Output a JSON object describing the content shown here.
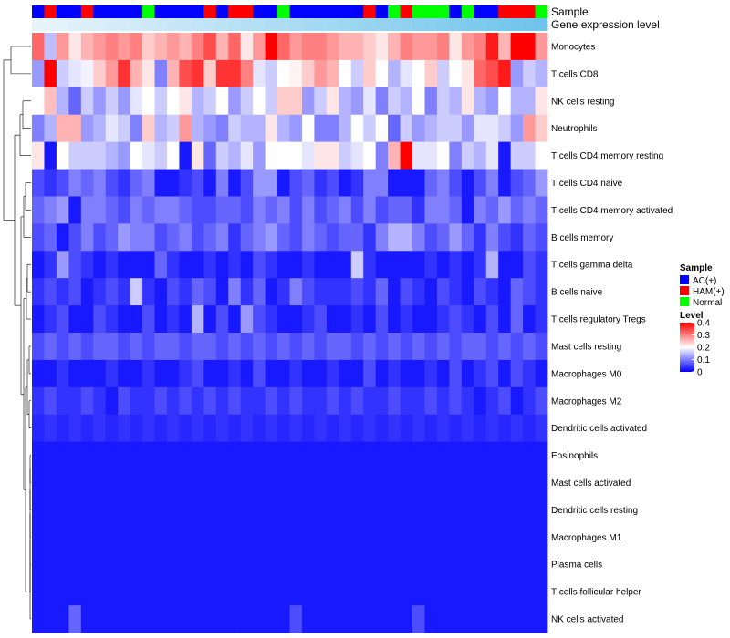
{
  "chart_data": {
    "type": "heatmap",
    "title": "",
    "annotation_tracks": [
      {
        "name": "Sample",
        "type": "categorical"
      },
      {
        "name": "Gene expression level",
        "type": "gradient"
      }
    ],
    "sample_groups": [
      "AC(+)",
      "HAM(+)",
      "AC(+)",
      "AC(+)",
      "HAM(+)",
      "AC(+)",
      "AC(+)",
      "AC(+)",
      "AC(+)",
      "Normal",
      "AC(+)",
      "AC(+)",
      "AC(+)",
      "AC(+)",
      "HAM(+)",
      "AC(+)",
      "HAM(+)",
      "HAM(+)",
      "AC(+)",
      "AC(+)",
      "Normal",
      "AC(+)",
      "AC(+)",
      "AC(+)",
      "AC(+)",
      "AC(+)",
      "AC(+)",
      "HAM(+)",
      "AC(+)",
      "Normal",
      "HAM(+)",
      "Normal",
      "Normal",
      "Normal",
      "AC(+)",
      "Normal",
      "AC(+)",
      "AC(+)",
      "HAM(+)",
      "HAM(+)",
      "HAM(+)",
      "Normal"
    ],
    "rows": [
      "Monocytes",
      "T cells CD8",
      "NK cells resting",
      "Neutrophils",
      "T cells CD4 memory resting",
      "T cells CD4 naive",
      "T cells CD4 memory activated",
      "B cells memory",
      "T cells gamma delta",
      "B cells naive",
      "T cells regulatory  Tregs",
      "Mast cells resting",
      "Macrophages M0",
      "Macrophages M2",
      "Dendritic cells activated",
      "Eosinophils",
      "Mast cells activated",
      "Dendritic cells resting",
      "Macrophages M1",
      "Plasma cells",
      "T cells follicular helper",
      "NK cells activated"
    ],
    "values": [
      [
        0.32,
        0.15,
        0.28,
        0.22,
        0.26,
        0.28,
        0.3,
        0.28,
        0.3,
        0.24,
        0.26,
        0.28,
        0.26,
        0.3,
        0.34,
        0.26,
        0.32,
        0.22,
        0.28,
        0.4,
        0.32,
        0.28,
        0.3,
        0.3,
        0.28,
        0.26,
        0.26,
        0.24,
        0.22,
        0.26,
        0.3,
        0.28,
        0.28,
        0.3,
        0.22,
        0.28,
        0.3,
        0.38,
        0.26,
        0.4,
        0.4,
        0.28
      ],
      [
        0.12,
        0.4,
        0.16,
        0.18,
        0.19,
        0.24,
        0.28,
        0.36,
        0.26,
        0.22,
        0.1,
        0.26,
        0.34,
        0.36,
        0.24,
        0.36,
        0.36,
        0.3,
        0.18,
        0.16,
        0.2,
        0.21,
        0.24,
        0.28,
        0.26,
        0.2,
        0.16,
        0.24,
        0.2,
        0.14,
        0.18,
        0.2,
        0.24,
        0.16,
        0.2,
        0.22,
        0.32,
        0.34,
        0.38,
        0.12,
        0.16,
        0.14
      ],
      [
        0.2,
        0.25,
        0.14,
        0.08,
        0.16,
        0.12,
        0.16,
        0.12,
        0.18,
        0.2,
        0.16,
        0.2,
        0.22,
        0.14,
        0.16,
        0.2,
        0.12,
        0.16,
        0.2,
        0.16,
        0.24,
        0.24,
        0.12,
        0.16,
        0.22,
        0.14,
        0.12,
        0.18,
        0.1,
        0.16,
        0.14,
        0.2,
        0.1,
        0.16,
        0.14,
        0.22,
        0.14,
        0.12,
        0.2,
        0.14,
        0.14,
        0.22
      ],
      [
        0.1,
        0.14,
        0.26,
        0.26,
        0.12,
        0.14,
        0.18,
        0.16,
        0.1,
        0.24,
        0.14,
        0.16,
        0.28,
        0.14,
        0.12,
        0.1,
        0.16,
        0.14,
        0.14,
        0.22,
        0.14,
        0.12,
        0.2,
        0.1,
        0.1,
        0.14,
        0.2,
        0.16,
        0.2,
        0.08,
        0.16,
        0.12,
        0.14,
        0.16,
        0.16,
        0.12,
        0.18,
        0.18,
        0.16,
        0.12,
        0.28,
        0.24
      ],
      [
        0.22,
        0.02,
        0.2,
        0.16,
        0.16,
        0.16,
        0.14,
        0.12,
        0.2,
        0.18,
        0.16,
        0.2,
        0.02,
        0.22,
        0.08,
        0.16,
        0.14,
        0.18,
        0.12,
        0.2,
        0.2,
        0.2,
        0.18,
        0.22,
        0.22,
        0.16,
        0.18,
        0.2,
        0.1,
        0.26,
        0.4,
        0.18,
        0.18,
        0.2,
        0.1,
        0.16,
        0.14,
        0.18,
        0.02,
        0.16,
        0.16,
        0.2
      ],
      [
        0.06,
        0.04,
        0.06,
        0.1,
        0.08,
        0.1,
        0.06,
        0.04,
        0.08,
        0.1,
        0.02,
        0.02,
        0.04,
        0.06,
        0.02,
        0.1,
        0.02,
        0.06,
        0.12,
        0.12,
        0.02,
        0.06,
        0.08,
        0.04,
        0.06,
        0.02,
        0.04,
        0.1,
        0.1,
        0.02,
        0.02,
        0.02,
        0.08,
        0.1,
        0.06,
        0.02,
        0.06,
        0.1,
        0.02,
        0.06,
        0.08,
        0.12
      ],
      [
        0.08,
        0.1,
        0.12,
        0.02,
        0.1,
        0.1,
        0.08,
        0.06,
        0.1,
        0.08,
        0.1,
        0.1,
        0.08,
        0.06,
        0.06,
        0.08,
        0.08,
        0.06,
        0.1,
        0.08,
        0.1,
        0.06,
        0.1,
        0.06,
        0.08,
        0.1,
        0.06,
        0.1,
        0.06,
        0.08,
        0.08,
        0.04,
        0.1,
        0.1,
        0.08,
        0.02,
        0.1,
        0.08,
        0.12,
        0.08,
        0.1,
        0.08
      ],
      [
        0.06,
        0.08,
        0.02,
        0.06,
        0.1,
        0.06,
        0.08,
        0.12,
        0.1,
        0.1,
        0.06,
        0.08,
        0.1,
        0.06,
        0.08,
        0.1,
        0.04,
        0.08,
        0.1,
        0.12,
        0.08,
        0.06,
        0.1,
        0.08,
        0.06,
        0.08,
        0.08,
        0.04,
        0.1,
        0.14,
        0.14,
        0.1,
        0.06,
        0.08,
        0.12,
        0.08,
        0.04,
        0.1,
        0.06,
        0.04,
        0.08,
        0.06
      ],
      [
        0.02,
        0.04,
        0.12,
        0.06,
        0.04,
        0.02,
        0.04,
        0.02,
        0.02,
        0.02,
        0.08,
        0.04,
        0.02,
        0.02,
        0.04,
        0.02,
        0.04,
        0.02,
        0.06,
        0.04,
        0.02,
        0.02,
        0.04,
        0.02,
        0.02,
        0.02,
        0.16,
        0.04,
        0.02,
        0.02,
        0.02,
        0.02,
        0.04,
        0.02,
        0.04,
        0.02,
        0.04,
        0.14,
        0.02,
        0.02,
        0.06,
        0.04
      ],
      [
        0.04,
        0.06,
        0.04,
        0.06,
        0.02,
        0.04,
        0.06,
        0.04,
        0.16,
        0.04,
        0.02,
        0.06,
        0.04,
        0.08,
        0.06,
        0.02,
        0.1,
        0.04,
        0.08,
        0.02,
        0.04,
        0.1,
        0.06,
        0.04,
        0.04,
        0.04,
        0.06,
        0.04,
        0.08,
        0.02,
        0.06,
        0.04,
        0.02,
        0.06,
        0.04,
        0.02,
        0.06,
        0.04,
        0.02,
        0.08,
        0.06,
        0.04
      ],
      [
        0.02,
        0.04,
        0.06,
        0.02,
        0.02,
        0.06,
        0.04,
        0.02,
        0.02,
        0.06,
        0.02,
        0.04,
        0.02,
        0.14,
        0.02,
        0.06,
        0.02,
        0.12,
        0.06,
        0.04,
        0.02,
        0.02,
        0.04,
        0.06,
        0.02,
        0.02,
        0.04,
        0.02,
        0.06,
        0.02,
        0.04,
        0.02,
        0.02,
        0.04,
        0.06,
        0.04,
        0.02,
        0.06,
        0.02,
        0.08,
        0.02,
        0.04
      ],
      [
        0.06,
        0.08,
        0.06,
        0.08,
        0.06,
        0.08,
        0.08,
        0.06,
        0.08,
        0.06,
        0.08,
        0.08,
        0.06,
        0.08,
        0.08,
        0.06,
        0.08,
        0.06,
        0.08,
        0.06,
        0.08,
        0.06,
        0.08,
        0.06,
        0.08,
        0.08,
        0.06,
        0.08,
        0.06,
        0.08,
        0.06,
        0.08,
        0.06,
        0.08,
        0.06,
        0.08,
        0.08,
        0.06,
        0.08,
        0.06,
        0.08,
        0.06
      ],
      [
        0.02,
        0.02,
        0.04,
        0.02,
        0.02,
        0.02,
        0.04,
        0.02,
        0.02,
        0.04,
        0.02,
        0.02,
        0.04,
        0.06,
        0.02,
        0.02,
        0.04,
        0.02,
        0.06,
        0.02,
        0.02,
        0.04,
        0.02,
        0.02,
        0.04,
        0.02,
        0.02,
        0.06,
        0.02,
        0.04,
        0.02,
        0.02,
        0.04,
        0.02,
        0.06,
        0.02,
        0.04,
        0.06,
        0.02,
        0.06,
        0.04,
        0.02
      ],
      [
        0.04,
        0.06,
        0.04,
        0.04,
        0.06,
        0.04,
        0.02,
        0.06,
        0.04,
        0.04,
        0.06,
        0.04,
        0.06,
        0.04,
        0.06,
        0.04,
        0.06,
        0.04,
        0.04,
        0.06,
        0.04,
        0.06,
        0.04,
        0.04,
        0.06,
        0.04,
        0.06,
        0.04,
        0.04,
        0.06,
        0.04,
        0.04,
        0.06,
        0.04,
        0.06,
        0.04,
        0.02,
        0.04,
        0.06,
        0.02,
        0.04,
        0.06
      ],
      [
        0.03,
        0.04,
        0.03,
        0.04,
        0.03,
        0.04,
        0.03,
        0.04,
        0.03,
        0.04,
        0.03,
        0.04,
        0.03,
        0.04,
        0.03,
        0.04,
        0.03,
        0.04,
        0.03,
        0.04,
        0.03,
        0.04,
        0.03,
        0.04,
        0.03,
        0.04,
        0.03,
        0.04,
        0.03,
        0.04,
        0.03,
        0.04,
        0.03,
        0.04,
        0.03,
        0.04,
        0.03,
        0.04,
        0.03,
        0.04,
        0.03,
        0.04
      ],
      [
        0.02,
        0.02,
        0.02,
        0.02,
        0.02,
        0.02,
        0.02,
        0.02,
        0.02,
        0.02,
        0.02,
        0.02,
        0.02,
        0.02,
        0.02,
        0.02,
        0.02,
        0.02,
        0.02,
        0.02,
        0.02,
        0.02,
        0.02,
        0.02,
        0.02,
        0.02,
        0.02,
        0.02,
        0.02,
        0.02,
        0.02,
        0.02,
        0.02,
        0.02,
        0.02,
        0.02,
        0.02,
        0.02,
        0.02,
        0.02,
        0.02,
        0.02
      ],
      [
        0.02,
        0.02,
        0.02,
        0.02,
        0.02,
        0.02,
        0.02,
        0.02,
        0.02,
        0.02,
        0.02,
        0.02,
        0.02,
        0.02,
        0.02,
        0.02,
        0.02,
        0.02,
        0.02,
        0.02,
        0.02,
        0.02,
        0.02,
        0.02,
        0.02,
        0.02,
        0.02,
        0.02,
        0.02,
        0.02,
        0.02,
        0.02,
        0.02,
        0.02,
        0.02,
        0.02,
        0.02,
        0.02,
        0.02,
        0.02,
        0.02,
        0.02
      ],
      [
        0.02,
        0.02,
        0.02,
        0.02,
        0.02,
        0.02,
        0.02,
        0.02,
        0.02,
        0.02,
        0.02,
        0.02,
        0.02,
        0.02,
        0.02,
        0.02,
        0.02,
        0.02,
        0.02,
        0.02,
        0.02,
        0.02,
        0.02,
        0.02,
        0.02,
        0.02,
        0.02,
        0.02,
        0.02,
        0.02,
        0.02,
        0.02,
        0.02,
        0.02,
        0.02,
        0.02,
        0.02,
        0.02,
        0.02,
        0.02,
        0.02,
        0.02
      ],
      [
        0.02,
        0.02,
        0.02,
        0.02,
        0.02,
        0.02,
        0.02,
        0.02,
        0.02,
        0.02,
        0.02,
        0.02,
        0.02,
        0.02,
        0.02,
        0.02,
        0.02,
        0.02,
        0.02,
        0.02,
        0.02,
        0.02,
        0.02,
        0.02,
        0.02,
        0.02,
        0.02,
        0.02,
        0.02,
        0.02,
        0.02,
        0.02,
        0.02,
        0.02,
        0.02,
        0.02,
        0.02,
        0.02,
        0.02,
        0.02,
        0.02,
        0.02
      ],
      [
        0.02,
        0.02,
        0.02,
        0.02,
        0.02,
        0.02,
        0.02,
        0.02,
        0.02,
        0.02,
        0.02,
        0.02,
        0.02,
        0.02,
        0.02,
        0.02,
        0.02,
        0.02,
        0.02,
        0.02,
        0.02,
        0.02,
        0.02,
        0.02,
        0.02,
        0.02,
        0.02,
        0.02,
        0.02,
        0.02,
        0.02,
        0.02,
        0.02,
        0.02,
        0.02,
        0.02,
        0.02,
        0.02,
        0.02,
        0.02,
        0.02,
        0.02
      ],
      [
        0.02,
        0.02,
        0.02,
        0.02,
        0.02,
        0.02,
        0.02,
        0.02,
        0.02,
        0.02,
        0.02,
        0.02,
        0.02,
        0.02,
        0.02,
        0.02,
        0.02,
        0.02,
        0.02,
        0.02,
        0.02,
        0.02,
        0.02,
        0.02,
        0.02,
        0.02,
        0.02,
        0.02,
        0.02,
        0.02,
        0.02,
        0.02,
        0.02,
        0.02,
        0.02,
        0.02,
        0.02,
        0.02,
        0.02,
        0.02,
        0.02,
        0.02
      ],
      [
        0.02,
        0.02,
        0.02,
        0.08,
        0.02,
        0.02,
        0.02,
        0.02,
        0.02,
        0.02,
        0.02,
        0.02,
        0.02,
        0.02,
        0.02,
        0.02,
        0.02,
        0.02,
        0.02,
        0.02,
        0.02,
        0.06,
        0.02,
        0.02,
        0.02,
        0.02,
        0.02,
        0.02,
        0.02,
        0.02,
        0.02,
        0.06,
        0.02,
        0.02,
        0.02,
        0.02,
        0.02,
        0.02,
        0.02,
        0.02,
        0.02,
        0.02
      ]
    ],
    "color_scale": {
      "min": 0,
      "max": 0.4,
      "low": "#0000ff",
      "mid": "#ffffff",
      "high": "#ff0000",
      "mid_value": 0.2
    },
    "legends": {
      "sample": {
        "title": "Sample",
        "items": [
          {
            "label": "AC(+)",
            "color": "#0000ff"
          },
          {
            "label": "HAM(+)",
            "color": "#ff0000"
          },
          {
            "label": "Normal",
            "color": "#00ff00"
          }
        ]
      },
      "level": {
        "title": "Level",
        "ticks": [
          {
            "value": 0.4,
            "label": "0.4"
          },
          {
            "value": 0.3,
            "label": "0.3"
          },
          {
            "value": 0.2,
            "label": "0.2"
          },
          {
            "value": 0.1,
            "label": "0.1"
          },
          {
            "value": 0,
            "label": "0"
          }
        ]
      }
    },
    "expression_track_color": "#7ec8f0",
    "dendrogram": "hierarchical row clustering (left side)"
  }
}
